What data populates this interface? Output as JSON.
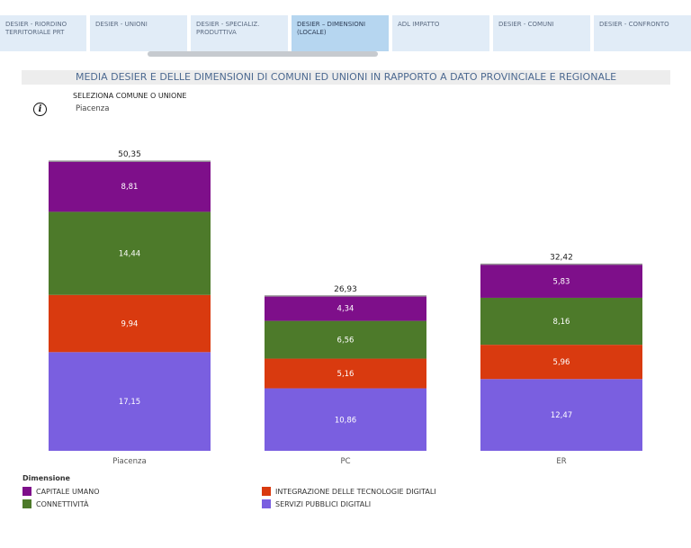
{
  "tabs": [
    {
      "label": "DESIER - RIORDINO TERRITORIALE PRT",
      "active": false
    },
    {
      "label": "DESIER - UNIONI",
      "active": false
    },
    {
      "label": "DESIER - SPECIALIZ. PRODUTTIVA",
      "active": false
    },
    {
      "label": "DESIER – DIMENSIONI (LOCALE)",
      "active": true
    },
    {
      "label": "ADL IMPATTO",
      "active": false
    },
    {
      "label": "DESIER - COMUNI",
      "active": false
    },
    {
      "label": "DESIER - CONFRONTO",
      "active": false
    }
  ],
  "title": "MEDIA DESIER E DELLE DIMENSIONI DI COMUNI ED UNIONI IN RAPPORTO A DATO PROVINCIALE E REGIONALE",
  "selector": {
    "label": "SELEZIONA COMUNE O UNIONE",
    "value": "Piacenza"
  },
  "info_icon": "info-icon",
  "chart_data": {
    "type": "bar",
    "stacked": true,
    "categories": [
      "Piacenza",
      "PC",
      "ER"
    ],
    "totals": [
      50.35,
      26.93,
      32.42
    ],
    "total_labels": [
      "50,35",
      "26,93",
      "32,42"
    ],
    "series": [
      {
        "name": "SERVIZI PUBBLICI DIGITALI",
        "color": "#7a5fe0",
        "values": [
          17.15,
          10.86,
          12.47
        ],
        "labels": [
          "17,15",
          "10,86",
          "12,47"
        ]
      },
      {
        "name": "INTEGRAZIONE DELLE TECNOLOGIE DIGITALI",
        "color": "#d93a0f",
        "values": [
          9.94,
          5.16,
          5.96
        ],
        "labels": [
          "9,94",
          "5,16",
          "5,96"
        ]
      },
      {
        "name": "CONNETTIVITÀ",
        "color": "#4d7a2a",
        "values": [
          14.44,
          6.56,
          8.16
        ],
        "labels": [
          "14,44",
          "6,56",
          "8,16"
        ]
      },
      {
        "name": "CAPITALE UMANO",
        "color": "#7e0f8a",
        "values": [
          8.81,
          4.34,
          5.83
        ],
        "labels": [
          "8,81",
          "4,34",
          "5,83"
        ]
      }
    ],
    "legend_title": "Dimensione",
    "legend_order": [
      "CAPITALE UMANO",
      "INTEGRAZIONE DELLE TECNOLOGIE DIGITALI",
      "CONNETTIVITÀ",
      "SERVIZI PUBBLICI DIGITALI"
    ],
    "ylim": [
      0,
      50.35
    ]
  }
}
